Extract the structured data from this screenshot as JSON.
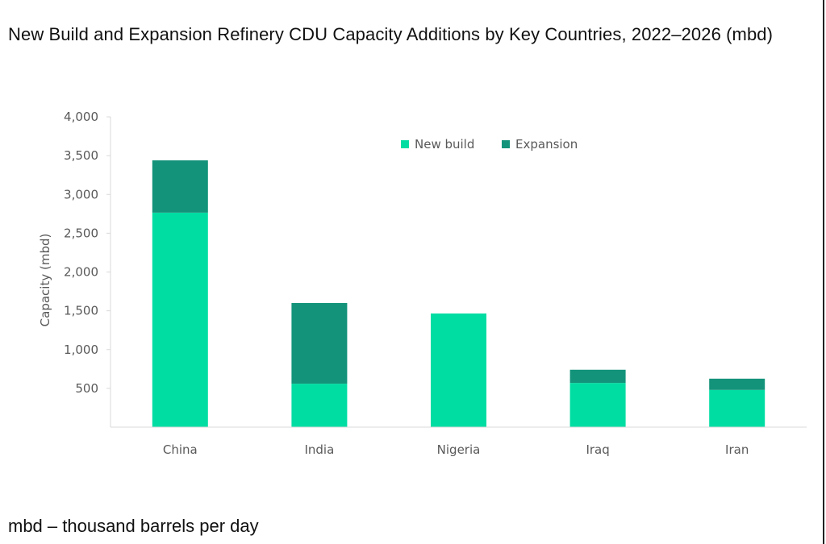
{
  "title": "New Build and Expansion Refinery CDU Capacity Additions by Key Countries, 2022–2026 (mbd)",
  "footnote": "mbd – thousand barrels per day",
  "chart_data": {
    "type": "bar",
    "stacked": true,
    "title": "New Build and Expansion Refinery CDU Capacity Additions by Key Countries, 2022–2026 (mbd)",
    "xlabel": "",
    "ylabel": "Capacity (mbd)",
    "ylim": [
      0,
      4000
    ],
    "yticks": [
      500,
      1000,
      1500,
      2000,
      2500,
      3000,
      3500,
      4000
    ],
    "ytick_labels": [
      "500",
      "1,000",
      "1,500",
      "2,000",
      "2,500",
      "3,000",
      "3,500",
      "4,000"
    ],
    "categories": [
      "China",
      "India",
      "Nigeria",
      "Iraq",
      "Iran"
    ],
    "series": [
      {
        "name": "New build",
        "color": "#00DDA3",
        "values": [
          2765,
          560,
          1465,
          570,
          480
        ]
      },
      {
        "name": "Expansion",
        "color": "#13937A",
        "values": [
          675,
          1040,
          0,
          170,
          145
        ]
      }
    ],
    "legend": {
      "position": "top-right",
      "entries": [
        "New build",
        "Expansion"
      ]
    },
    "grid": false
  }
}
